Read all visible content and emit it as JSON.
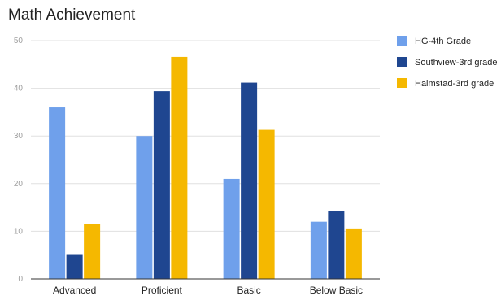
{
  "chart_data": {
    "type": "bar",
    "title": "Math Achievement",
    "xlabel": "",
    "ylabel": "",
    "categories": [
      "Advanced",
      "Proficient",
      "Basic",
      "Below Basic"
    ],
    "series": [
      {
        "name": "HG-4th Grade",
        "color": "#6fa0eb",
        "values": [
          36,
          30,
          21,
          12
        ]
      },
      {
        "name": "Southview-3rd grade",
        "color": "#1f4690",
        "values": [
          5.2,
          39.4,
          41.2,
          14.2
        ]
      },
      {
        "name": "Halmstad-3rd grade",
        "color": "#f5b800",
        "values": [
          11.6,
          46.6,
          31.3,
          10.6
        ]
      }
    ],
    "ylim": [
      0,
      50
    ],
    "yticks": [
      0,
      10,
      20,
      30,
      40,
      50
    ],
    "grid": true,
    "legend_position": "right"
  }
}
